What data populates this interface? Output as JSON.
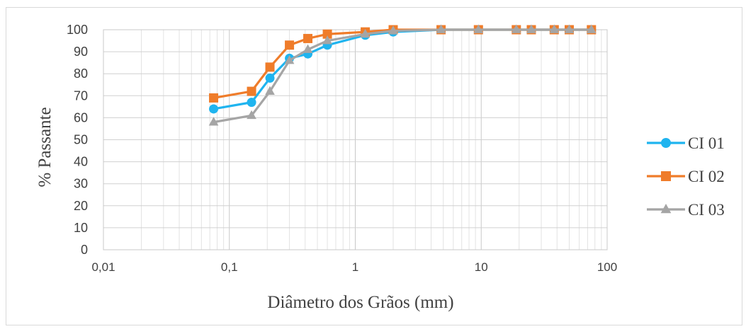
{
  "chart_data": {
    "type": "line",
    "title": "",
    "xlabel": "Diâmetro dos Grãos (mm)",
    "ylabel": "% Passante",
    "x_scale": "log",
    "xlim": [
      0.01,
      100
    ],
    "ylim": [
      0,
      100
    ],
    "x_ticks": [
      "0,01",
      "0,1",
      "1",
      "10",
      "100"
    ],
    "y_ticks": [
      "0",
      "10",
      "20",
      "30",
      "40",
      "50",
      "60",
      "70",
      "80",
      "90",
      "100"
    ],
    "grid": true,
    "legend_position": "right",
    "x": [
      0.075,
      0.15,
      0.21,
      0.3,
      0.42,
      0.6,
      1.2,
      2.0,
      4.8,
      9.5,
      19,
      25,
      38,
      50,
      75
    ],
    "series": [
      {
        "name": "CI 01",
        "color": "#1fb4ef",
        "marker": "circle",
        "values": [
          64,
          67,
          78,
          87,
          89,
          93,
          97.5,
          99,
          100,
          100,
          100,
          100,
          100,
          100,
          100
        ]
      },
      {
        "name": "CI 02",
        "color": "#ef7c2a",
        "marker": "square",
        "values": [
          69,
          72,
          83,
          93,
          96,
          98,
          99,
          100,
          100,
          100,
          100,
          100,
          100,
          100,
          100
        ]
      },
      {
        "name": "CI 03",
        "color": "#a5a5a5",
        "marker": "triangle",
        "values": [
          58,
          61,
          72,
          86,
          91,
          95,
          98,
          99.5,
          100,
          100,
          100,
          100,
          100,
          100,
          100
        ]
      }
    ]
  }
}
